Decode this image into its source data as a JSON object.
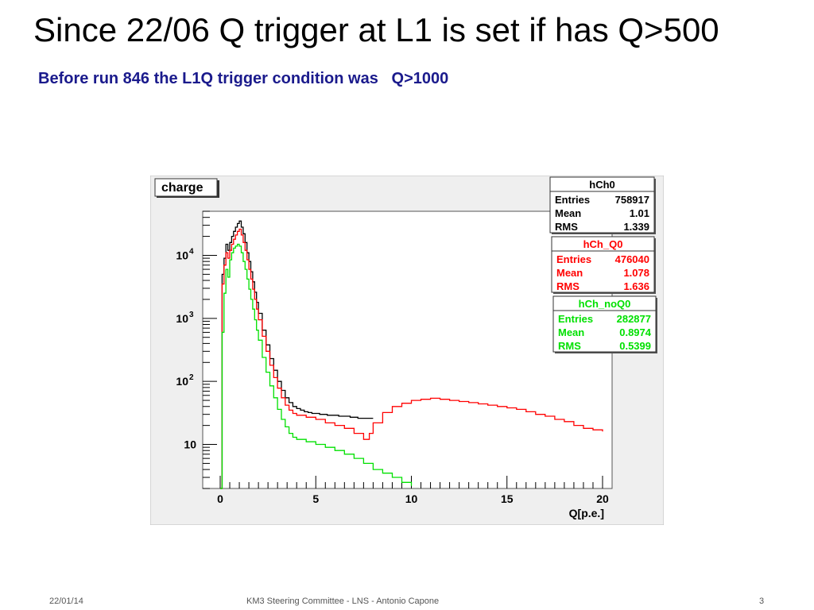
{
  "slide": {
    "title": "Since 22/06 Q trigger at L1 is set if has Q>500",
    "subtitle": "Before run 846 the L1Q trigger condition was   Q>1000"
  },
  "footer": {
    "date": "22/01/14",
    "center": "KM3 Steering Committee - LNS - Antonio Capone",
    "page": "3"
  },
  "chart_data": {
    "type": "line",
    "title": "charge",
    "xlabel": "Q[p.e.]",
    "ylabel": "",
    "xlim": [
      0,
      20
    ],
    "ylim": [
      2,
      50000
    ],
    "yscale": "log",
    "x_ticks": [
      0,
      5,
      10,
      15,
      20
    ],
    "y_tick_labels": [
      {
        "value": 10,
        "label": "10"
      },
      {
        "value": 100,
        "label": "10",
        "exp": "2"
      },
      {
        "value": 1000,
        "label": "10",
        "exp": "3"
      },
      {
        "value": 10000,
        "label": "10",
        "exp": "4"
      }
    ],
    "grid": false,
    "series": [
      {
        "name": "hCh0",
        "color": "#000000",
        "x": [
          0,
          0.1,
          0.2,
          0.3,
          0.4,
          0.5,
          0.6,
          0.7,
          0.8,
          0.9,
          1.0,
          1.1,
          1.2,
          1.3,
          1.4,
          1.5,
          1.6,
          1.7,
          1.8,
          1.9,
          2.0,
          2.2,
          2.4,
          2.6,
          2.8,
          3.0,
          3.2,
          3.4,
          3.6,
          3.8,
          4.0,
          4.2,
          4.4,
          4.6,
          4.8,
          5.0,
          5.2,
          5.4,
          5.6,
          5.8,
          6.0,
          6.2,
          6.4,
          6.6,
          6.8,
          7.0,
          7.2,
          7.4,
          7.6,
          7.8,
          8.0
        ],
        "values": [
          2,
          5000,
          9000,
          15000,
          12000,
          16000,
          20000,
          24000,
          28000,
          32000,
          35000,
          28000,
          22000,
          16000,
          11000,
          8000,
          5500,
          3800,
          2600,
          1800,
          1200,
          650,
          380,
          230,
          150,
          100,
          72,
          55,
          46,
          40,
          37,
          35,
          33,
          32,
          31,
          31,
          30,
          30,
          29,
          29,
          29,
          28,
          28,
          28,
          27,
          27,
          26,
          26,
          26,
          26,
          26
        ]
      },
      {
        "name": "hCh_Q0",
        "color": "#ff0000",
        "x": [
          0,
          0.1,
          0.2,
          0.3,
          0.4,
          0.5,
          0.6,
          0.7,
          0.8,
          0.9,
          1.0,
          1.1,
          1.2,
          1.3,
          1.4,
          1.5,
          1.6,
          1.7,
          1.8,
          1.9,
          2.0,
          2.2,
          2.4,
          2.6,
          2.8,
          3.0,
          3.2,
          3.4,
          3.6,
          3.8,
          4.0,
          4.5,
          5.0,
          5.5,
          6.0,
          6.5,
          7.0,
          7.5,
          7.8,
          8.0,
          8.5,
          9.0,
          9.5,
          10.0,
          10.5,
          11.0,
          11.5,
          12.0,
          12.5,
          13.0,
          13.5,
          14.0,
          14.5,
          15.0,
          15.5,
          16.0,
          16.5,
          17.0,
          17.5,
          18.0,
          18.5,
          19.0,
          19.5,
          20.0
        ],
        "values": [
          2,
          3500,
          7000,
          11000,
          9000,
          12000,
          15000,
          18000,
          21000,
          24000,
          26000,
          21000,
          16000,
          12000,
          8500,
          6000,
          4200,
          2900,
          2000,
          1400,
          950,
          520,
          300,
          180,
          115,
          78,
          55,
          42,
          35,
          31,
          29,
          27,
          25,
          22,
          20,
          18,
          15,
          12,
          15,
          22,
          32,
          40,
          45,
          50,
          52,
          54,
          52,
          50,
          48,
          46,
          44,
          42,
          40,
          38,
          36,
          33,
          30,
          28,
          25,
          23,
          20,
          18,
          17,
          16
        ]
      },
      {
        "name": "hCh_noQ0",
        "color": "#00e000",
        "x": [
          0,
          0.1,
          0.2,
          0.3,
          0.4,
          0.5,
          0.6,
          0.7,
          0.8,
          0.9,
          1.0,
          1.1,
          1.2,
          1.3,
          1.4,
          1.5,
          1.6,
          1.7,
          1.8,
          1.9,
          2.0,
          2.2,
          2.4,
          2.6,
          2.8,
          3.0,
          3.2,
          3.4,
          3.6,
          3.8,
          4.0,
          4.5,
          5.0,
          5.5,
          6.0,
          6.5,
          7.0,
          7.5,
          8.0,
          8.5,
          9.0,
          9.5,
          10.0
        ],
        "values": [
          2,
          600,
          2500,
          6000,
          4500,
          8500,
          11000,
          13000,
          14000,
          15000,
          14000,
          11000,
          8000,
          6000,
          4200,
          2900,
          2000,
          1400,
          950,
          650,
          450,
          240,
          140,
          85,
          55,
          36,
          25,
          19,
          15,
          13,
          12,
          11,
          10,
          9,
          8,
          7,
          6,
          5,
          4,
          3.5,
          3,
          2.5,
          2.2
        ]
      }
    ],
    "stat_boxes": [
      {
        "name": "hCh0",
        "color": "#000000",
        "rows": [
          [
            "Entries",
            "758917"
          ],
          [
            "Mean",
            "1.01"
          ],
          [
            "RMS",
            "1.339"
          ]
        ]
      },
      {
        "name": "hCh_Q0",
        "color": "#ff0000",
        "rows": [
          [
            "Entries",
            "476040"
          ],
          [
            "Mean",
            "1.078"
          ],
          [
            "RMS",
            "1.636"
          ]
        ]
      },
      {
        "name": "hCh_noQ0",
        "color": "#00e000",
        "rows": [
          [
            "Entries",
            "282877"
          ],
          [
            "Mean",
            "0.8974"
          ],
          [
            "RMS",
            "0.5399"
          ]
        ]
      }
    ]
  }
}
